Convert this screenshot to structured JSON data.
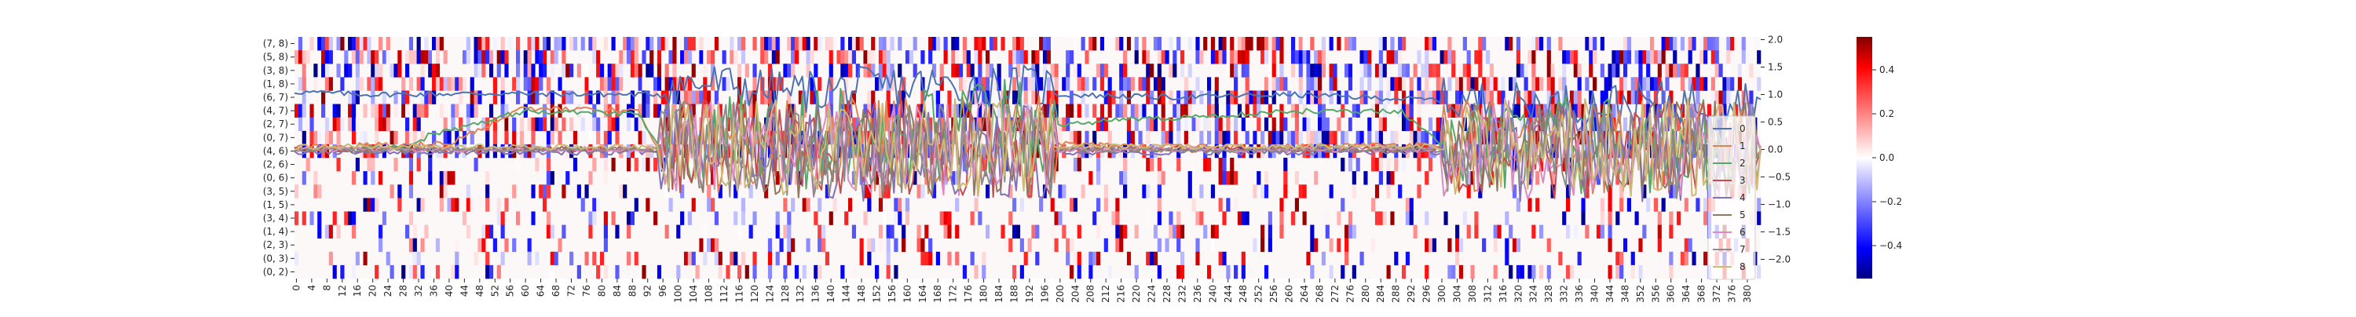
{
  "chart_data": {
    "type": "heatmap",
    "title": "",
    "xlabel": "",
    "ylabel": "",
    "heatmap": {
      "row_labels": [
        "(7, 8)",
        "(5, 8)",
        "(3, 8)",
        "(1, 8)",
        "(6, 7)",
        "(4, 7)",
        "(2, 7)",
        "(0, 7)",
        "(4, 6)",
        "(2, 6)",
        "(0, 6)",
        "(3, 5)",
        "(1, 5)",
        "(3, 4)",
        "(1, 4)",
        "(2, 3)",
        "(0, 3)",
        "(0, 2)"
      ],
      "x_ticks": [
        "0",
        "4",
        "8",
        "12",
        "16",
        "20",
        "24",
        "28",
        "32",
        "36",
        "40",
        "44",
        "48",
        "52",
        "56",
        "60",
        "64",
        "68",
        "72",
        "76",
        "80",
        "84",
        "88",
        "92",
        "96",
        "100",
        "104",
        "108",
        "112",
        "116",
        "120",
        "124",
        "128",
        "132",
        "136",
        "140",
        "144",
        "148",
        "152",
        "156",
        "160",
        "164",
        "168",
        "172",
        "176",
        "180",
        "184",
        "188",
        "192",
        "196",
        "200",
        "204",
        "208",
        "212",
        "216",
        "220",
        "224",
        "228",
        "232",
        "236",
        "240",
        "244",
        "248",
        "252",
        "256",
        "260",
        "264",
        "268",
        "272",
        "276",
        "280",
        "284",
        "288",
        "292",
        "296",
        "300",
        "304",
        "308",
        "312",
        "316",
        "320",
        "324",
        "328",
        "332",
        "336",
        "340",
        "344",
        "348",
        "352",
        "356",
        "360",
        "364",
        "368",
        "372",
        "376",
        "380"
      ],
      "n_cols": 384,
      "colormap": "bwr",
      "vmin": -0.55,
      "vmax": 0.55
    },
    "colorbar": {
      "ticks": [
        "0.4",
        "0.2",
        "0.0",
        "−0.2",
        "−0.4"
      ],
      "tick_values": [
        0.4,
        0.2,
        0.0,
        -0.2,
        -0.4
      ]
    },
    "line_overlay": {
      "type": "line",
      "y_axis_ticks": [
        "2.0",
        "1.5",
        "1.0",
        "0.5",
        "0.0",
        "−0.5",
        "−1.0",
        "−1.5",
        "−2.0"
      ],
      "y_axis_tick_values": [
        2.0,
        1.5,
        1.0,
        0.5,
        0.0,
        -0.5,
        -1.0,
        -1.5,
        -2.0
      ],
      "ylim": [
        -2.35,
        2.05
      ],
      "x_range": [
        0,
        384
      ],
      "legend_placement": "right",
      "series": [
        {
          "name": "0",
          "color": "#4c72b0",
          "segments": [
            [
              0,
              1.05
            ],
            [
              20,
              1.0
            ],
            [
              50,
              1.02
            ],
            [
              90,
              1.0
            ],
            [
              110,
              1.05
            ],
            [
              130,
              0.9
            ],
            [
              160,
              1.0
            ],
            [
              200,
              1.0
            ],
            [
              230,
              0.95
            ],
            [
              260,
              1.0
            ],
            [
              300,
              0.9
            ],
            [
              330,
              0.8
            ],
            [
              384,
              0.9
            ]
          ]
        },
        {
          "name": "1",
          "color": "#dd8452",
          "segments": [
            [
              0,
              0.05
            ],
            [
              40,
              0.1
            ],
            [
              60,
              0.75
            ],
            [
              90,
              0.7
            ],
            [
              95,
              0.0
            ],
            [
              200,
              0.1
            ],
            [
              230,
              0.05
            ],
            [
              260,
              0.05
            ],
            [
              300,
              0.1
            ],
            [
              384,
              0.0
            ]
          ]
        },
        {
          "name": "2",
          "color": "#55a868",
          "segments": [
            [
              0,
              0.0
            ],
            [
              30,
              0.05
            ],
            [
              35,
              0.25
            ],
            [
              60,
              0.7
            ],
            [
              90,
              0.65
            ],
            [
              96,
              0.0
            ],
            [
              220,
              0.55
            ],
            [
              240,
              0.6
            ],
            [
              260,
              0.7
            ],
            [
              290,
              0.7
            ],
            [
              300,
              0.1
            ],
            [
              384,
              0.0
            ]
          ]
        },
        {
          "name": "3",
          "color": "#c44e52",
          "segments": [
            [
              0,
              0.0
            ],
            [
              384,
              0.0
            ]
          ]
        },
        {
          "name": "4",
          "color": "#8172b3",
          "segments": [
            [
              0,
              -0.05
            ],
            [
              384,
              -0.05
            ]
          ]
        },
        {
          "name": "5",
          "color": "#937860",
          "segments": [
            [
              0,
              0.0
            ],
            [
              384,
              0.0
            ]
          ]
        },
        {
          "name": "6",
          "color": "#da8bc3",
          "segments": [
            [
              0,
              0.0
            ],
            [
              384,
              0.0
            ]
          ]
        },
        {
          "name": "7",
          "color": "#8c8c8c",
          "segments": [
            [
              0,
              0.0
            ],
            [
              384,
              0.0
            ]
          ]
        },
        {
          "name": "8",
          "color": "#ccb974",
          "segments": [
            [
              0,
              0.05
            ],
            [
              384,
              0.05
            ]
          ]
        }
      ]
    }
  }
}
